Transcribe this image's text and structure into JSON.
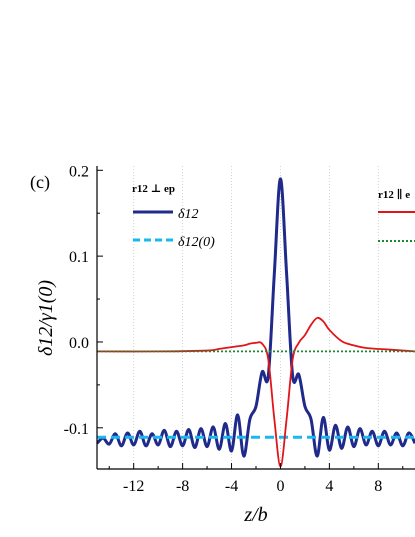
{
  "panel_label": "(c)",
  "chart_data": {
    "type": "line",
    "xlabel": "z/b",
    "ylabel": "δ12/γ1(0)",
    "xlim": [
      -15,
      11
    ],
    "ylim": [
      -0.148,
      0.205
    ],
    "x_ticks": [
      -12,
      -8,
      -4,
      0,
      4,
      8
    ],
    "x_tick_labels": [
      "-12",
      "-8",
      "-4",
      "0",
      "4",
      "8"
    ],
    "y_ticks": [
      0.2,
      0.1,
      0.0,
      -0.1
    ],
    "y_tick_labels": [
      "0.2",
      "0.1",
      "0.0",
      "-0.1"
    ],
    "grid": "vertical dotted lines at x ticks",
    "legend_left": {
      "title": "r12 ⊥ ep",
      "entries": [
        {
          "label": "δ12",
          "color": "#1f2a8a",
          "style": "solid"
        },
        {
          "label": "δ12(0)",
          "color": "#19b8f0",
          "style": "dashed"
        }
      ]
    },
    "legend_right": {
      "title": "r12 ∥ e",
      "entries": [
        {
          "label": "",
          "color": "#e0151a",
          "style": "solid"
        },
        {
          "label": "",
          "color": "#1a8a30",
          "style": "dotted"
        }
      ]
    },
    "series": [
      {
        "key": "perp_delta",
        "color": "#1f2a8a",
        "style": "solid",
        "x": [
          -15,
          -14.5,
          -14,
          -13.5,
          -13,
          -12.5,
          -12,
          -11.5,
          -11,
          -10.5,
          -10,
          -9.5,
          -9,
          -8.5,
          -8,
          -7.5,
          -7,
          -6.5,
          -6,
          -5.5,
          -5,
          -4.5,
          -4,
          -3.5,
          -3,
          -2.5,
          -2,
          -1.5,
          -1,
          -0.5,
          0,
          0.5,
          1,
          1.5,
          2,
          2.5,
          3,
          3.5,
          4,
          4.5,
          5,
          5.5,
          6,
          6.5,
          7,
          7.5,
          8,
          8.5,
          9,
          9.5,
          10,
          10.5,
          11
        ],
        "y": [
          -0.118,
          -0.112,
          -0.119,
          -0.107,
          -0.121,
          -0.106,
          -0.12,
          -0.104,
          -0.121,
          -0.107,
          -0.12,
          -0.103,
          -0.122,
          -0.104,
          -0.121,
          -0.102,
          -0.123,
          -0.101,
          -0.122,
          -0.099,
          -0.125,
          -0.095,
          -0.127,
          -0.085,
          -0.133,
          -0.09,
          -0.075,
          -0.035,
          -0.04,
          0.08,
          0.19,
          0.08,
          -0.04,
          -0.038,
          -0.075,
          -0.09,
          -0.133,
          -0.088,
          -0.126,
          -0.097,
          -0.124,
          -0.099,
          -0.122,
          -0.101,
          -0.12,
          -0.104,
          -0.121,
          -0.104,
          -0.12,
          -0.106,
          -0.121,
          -0.106,
          -0.118
        ]
      },
      {
        "key": "perp_delta0",
        "color": "#19b8f0",
        "style": "dashed",
        "x": [
          -15,
          11
        ],
        "y": [
          -0.111,
          -0.111
        ]
      },
      {
        "key": "para_delta",
        "color": "#e0151a",
        "style": "solid",
        "x": [
          -15,
          -10,
          -6,
          -5,
          -4,
          -3,
          -2.5,
          -2,
          -1.5,
          -1,
          -0.5,
          0,
          0.5,
          1,
          1.5,
          2,
          2.5,
          3,
          3.5,
          4,
          5,
          6,
          7,
          9,
          11
        ],
        "y": [
          -0.011,
          -0.011,
          -0.01,
          -0.008,
          -0.006,
          -0.004,
          -0.002,
          -0.001,
          -0.002,
          -0.02,
          -0.09,
          -0.145,
          -0.09,
          -0.02,
          -0.001,
          0.008,
          0.02,
          0.028,
          0.024,
          0.014,
          0.001,
          -0.004,
          -0.007,
          -0.009,
          -0.011
        ]
      },
      {
        "key": "para_delta0",
        "color": "#1a8a30",
        "style": "dotted",
        "x": [
          -15,
          11
        ],
        "y": [
          -0.011,
          -0.011
        ]
      }
    ]
  }
}
